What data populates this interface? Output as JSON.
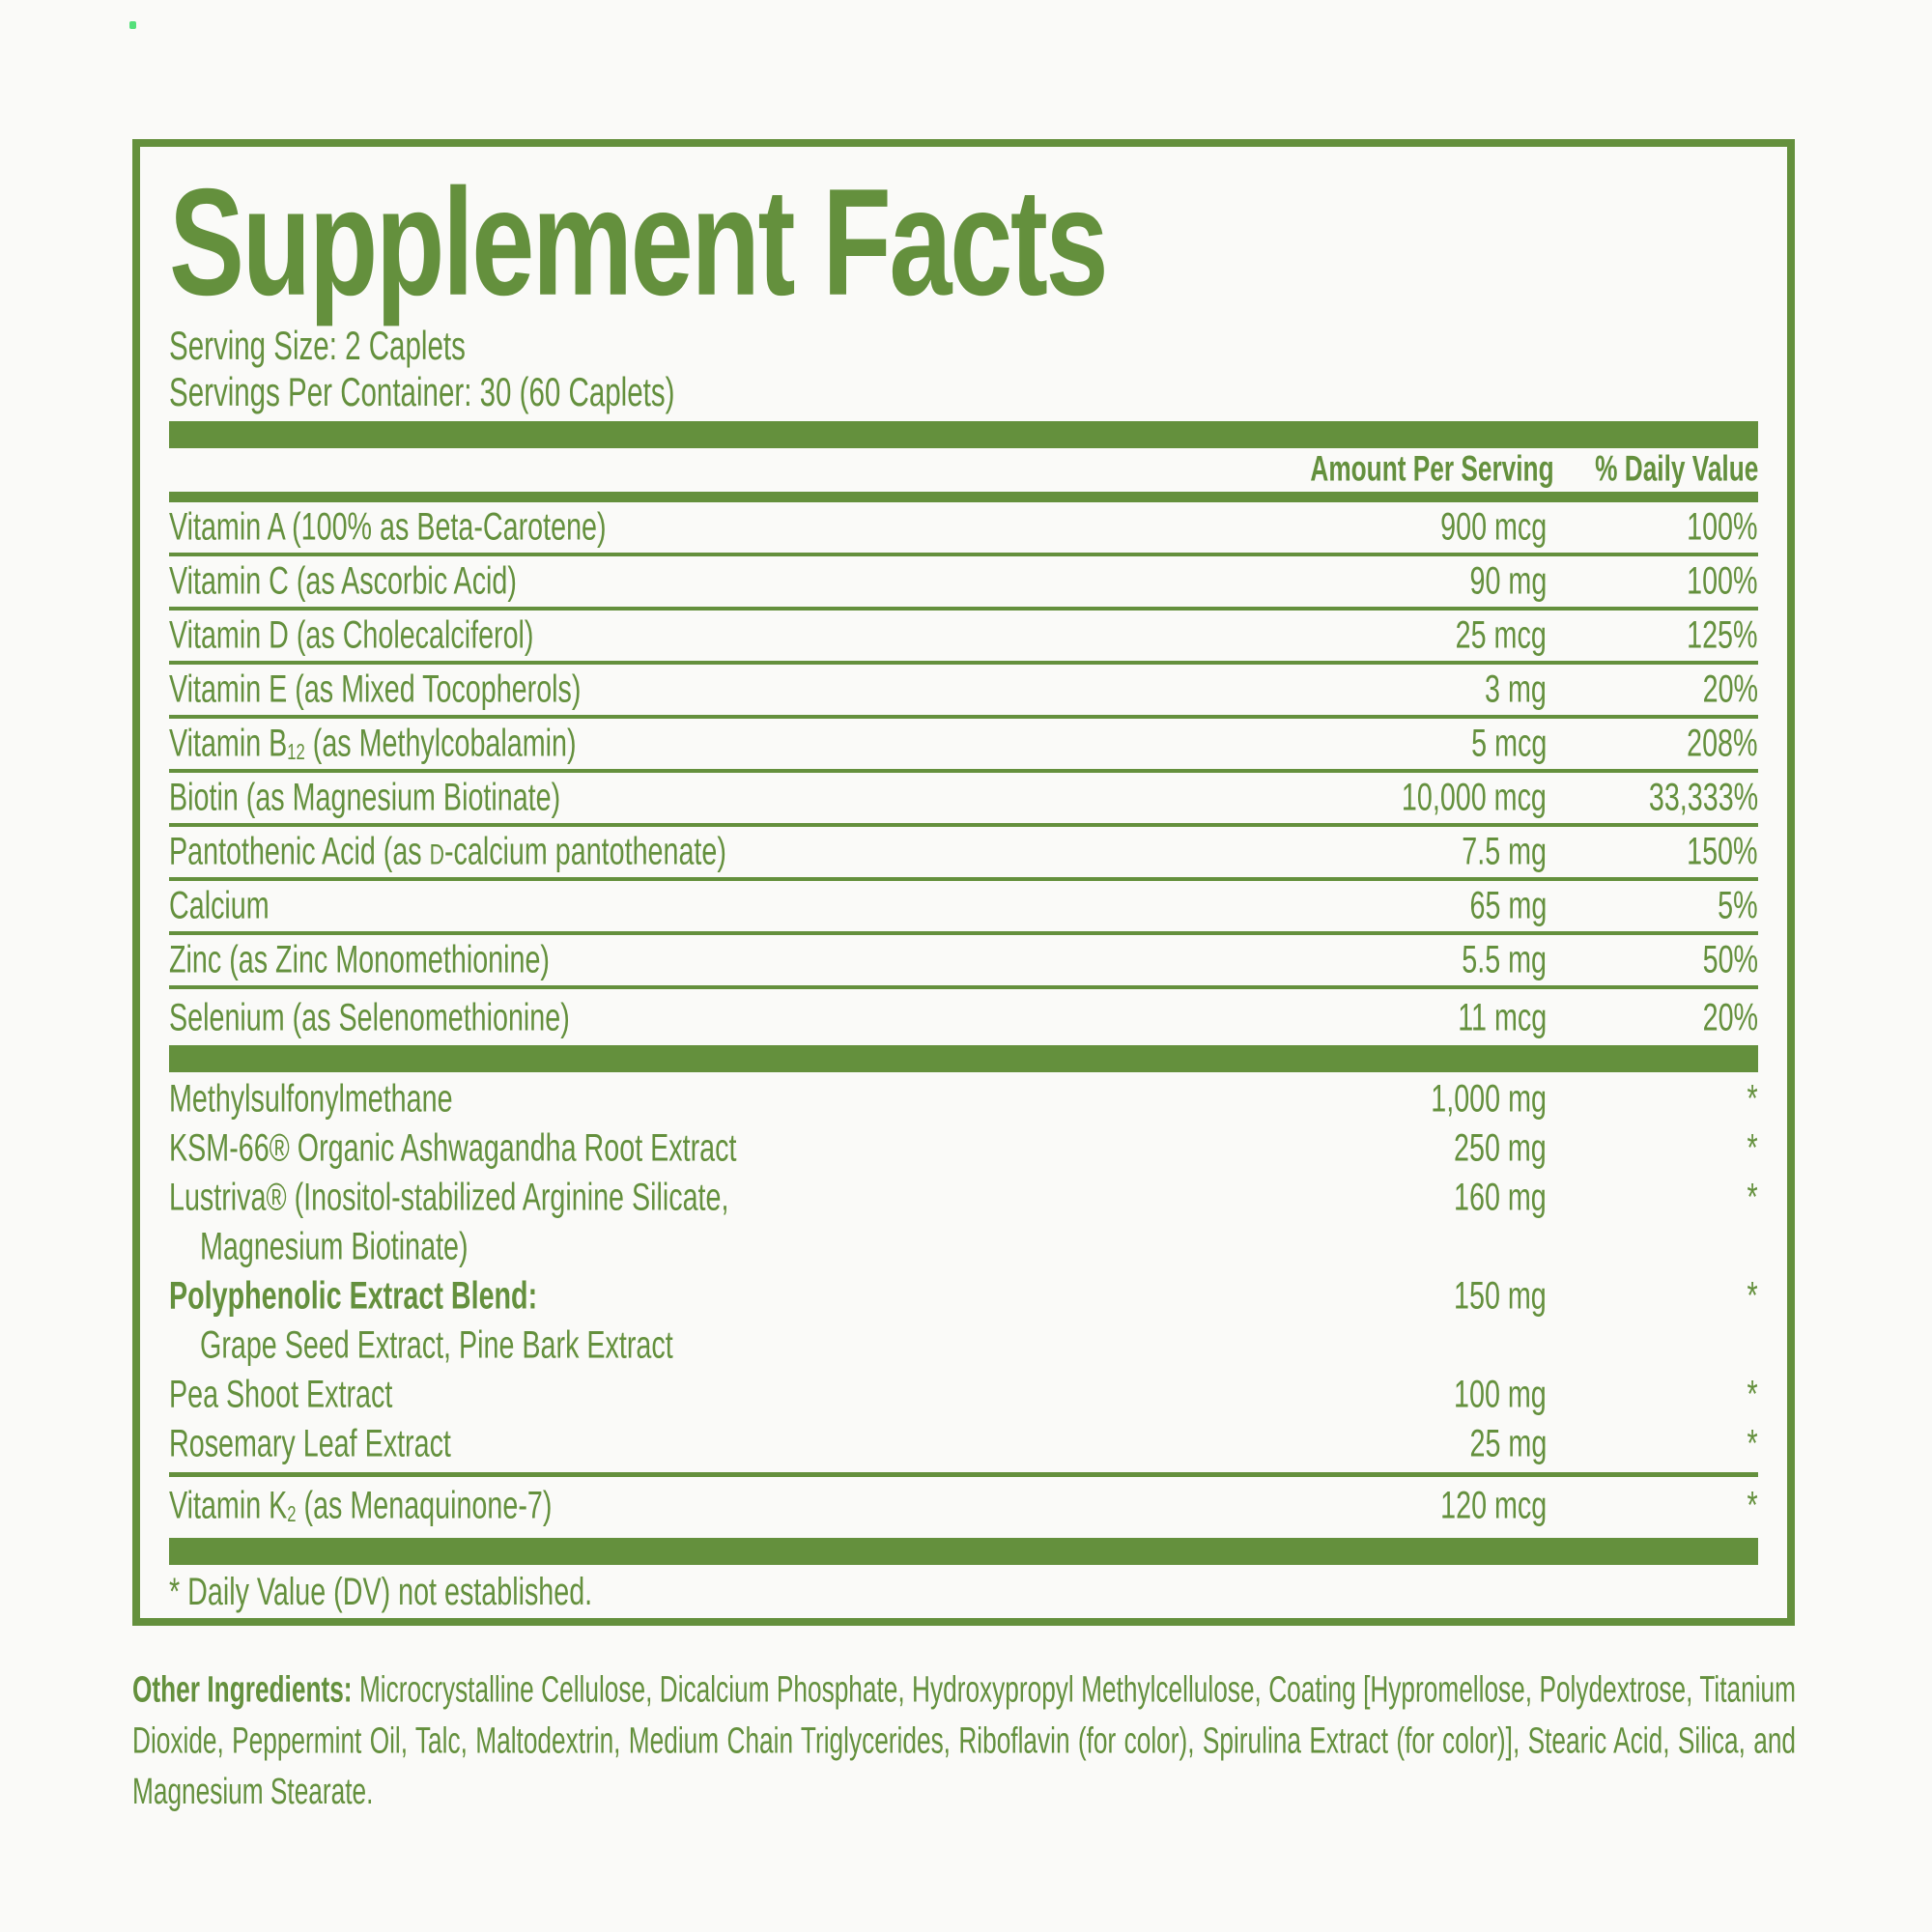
{
  "colors": {
    "green": "#64903d",
    "background": "#fafaf8",
    "artifact_dot_green": "#55e07b"
  },
  "facts": {
    "title": "Supplement Facts",
    "serving_size": "Serving Size: 2 Caplets",
    "servings_per_container": "Servings Per Container: 30 (60 Caplets)",
    "header": {
      "amount": "Amount Per Serving",
      "daily_value": "% Daily Value"
    },
    "section1": [
      {
        "pre": "Vitamin A (100% as Beta-Carotene)",
        "sub": "",
        "sc": "",
        "post": "",
        "amount": "900 mcg",
        "dv": "100%"
      },
      {
        "pre": "Vitamin C (as Ascorbic Acid)",
        "sub": "",
        "sc": "",
        "post": "",
        "amount": "90 mg",
        "dv": "100%"
      },
      {
        "pre": "Vitamin D (as Cholecalciferol)",
        "sub": "",
        "sc": "",
        "post": "",
        "amount": "25 mcg",
        "dv": "125%"
      },
      {
        "pre": "Vitamin E (as Mixed Tocopherols)",
        "sub": "",
        "sc": "",
        "post": "",
        "amount": "3 mg",
        "dv": "20%"
      },
      {
        "pre": "Vitamin B",
        "sub": "12",
        "sc": "",
        "post": " (as Methylcobalamin)",
        "amount": "5 mcg",
        "dv": "208%"
      },
      {
        "pre": "Biotin (as Magnesium Biotinate)",
        "sub": "",
        "sc": "",
        "post": "",
        "amount": "10,000 mcg",
        "dv": "33,333%"
      },
      {
        "pre": "Pantothenic Acid (as ",
        "sub": "",
        "sc": "D",
        "post": "-calcium pantothenate)",
        "amount": "7.5 mg",
        "dv": "150%"
      },
      {
        "pre": "Calcium",
        "sub": "",
        "sc": "",
        "post": "",
        "amount": "65 mg",
        "dv": "5%"
      },
      {
        "pre": "Zinc (as Zinc Monomethionine)",
        "sub": "",
        "sc": "",
        "post": "",
        "amount": "5.5 mg",
        "dv": "50%"
      },
      {
        "pre": "Selenium (as Selenomethionine)",
        "sub": "",
        "sc": "",
        "post": "",
        "amount": "11 mcg",
        "dv": "20%"
      }
    ],
    "section2": [
      {
        "pre": "Methylsulfonylmethane",
        "sub": "",
        "sc": "",
        "post": "",
        "amount": "1,000 mg",
        "dv": "*"
      },
      {
        "pre": "KSM-66® Organic Ashwagandha Root Extract",
        "sub": "",
        "sc": "",
        "post": "",
        "amount": "250 mg",
        "dv": "*"
      },
      {
        "pre": "Lustriva® (Inositol-stabilized Arginine Silicate,",
        "sub": "",
        "sc": "",
        "post": "",
        "amount": "160 mg",
        "dv": "*"
      },
      {
        "pre": "Magnesium Biotinate)",
        "sub": "",
        "sc": "",
        "post": "",
        "amount": "",
        "dv": ""
      },
      {
        "pre": "Polyphenolic Extract Blend:",
        "sub": "",
        "sc": "",
        "post": "",
        "amount": "150 mg",
        "dv": "*"
      },
      {
        "pre": "Grape Seed Extract, Pine Bark Extract",
        "sub": "",
        "sc": "",
        "post": "",
        "amount": "",
        "dv": ""
      },
      {
        "pre": "Pea Shoot Extract",
        "sub": "",
        "sc": "",
        "post": "",
        "amount": "100 mg",
        "dv": "*"
      },
      {
        "pre": "Rosemary Leaf Extract",
        "sub": "",
        "sc": "",
        "post": "",
        "amount": "25 mg",
        "dv": "*"
      }
    ],
    "section3": [
      {
        "pre": "Vitamin K",
        "sub": "2",
        "sc": "",
        "post": " (as Menaquinone-7)",
        "amount": "120 mcg",
        "dv": "*"
      }
    ],
    "footnote": "* Daily Value (DV) not established."
  },
  "other_ingredients": {
    "label": "Other Ingredients:",
    "text": " Microcrystalline Cellulose, Dicalcium Phosphate, Hydroxypropyl Methylcellulose, Coating [Hypromellose, Polydextrose, Titanium Dioxide, Peppermint Oil, Talc, Maltodextrin, Medium Chain Triglycerides, Riboflavin (for color), Spirulina Extract (for color)], Stearic Acid, Silica, and Magnesium Stearate."
  }
}
